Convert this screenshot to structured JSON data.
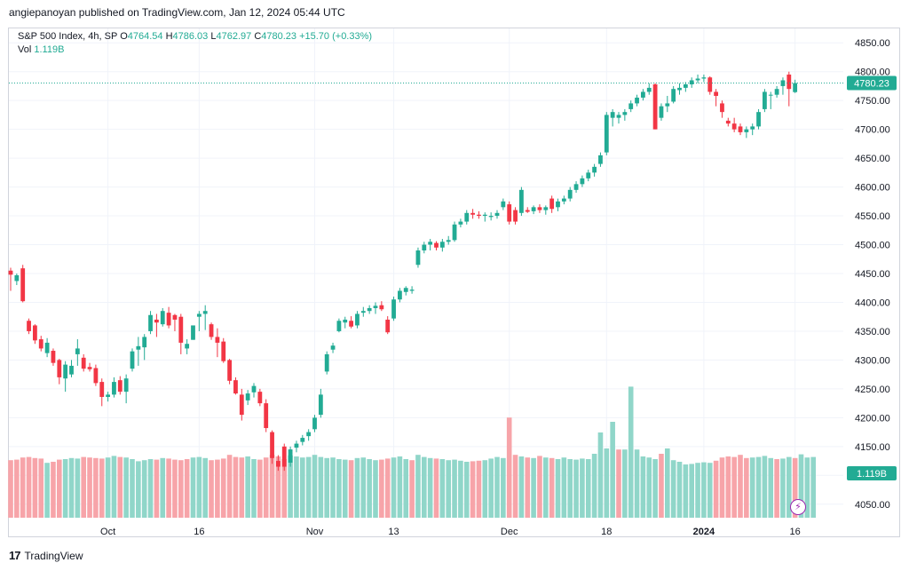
{
  "header": {
    "published": "angiepanoyan published on TradingView.com, Jan 12, 2024 05:44 UTC"
  },
  "legend": {
    "symbol": "S&P 500 Index, 4h, SP",
    "o_label": "O",
    "o_value": "4764.54",
    "h_label": "H",
    "h_value": "4786.03",
    "l_label": "L",
    "l_value": "4762.97",
    "c_label": "C",
    "c_value": "4780.23",
    "change": "+15.70 (+0.33%)",
    "vol_label": "Vol",
    "vol_value": "1.119B"
  },
  "footer": {
    "brand": "TradingView",
    "logo": "17"
  },
  "colors": {
    "up": "#22ab94",
    "down": "#f23645",
    "up_vol": "#90d6c9",
    "down_vol": "#f7a4a9",
    "grid": "#f0f3fa",
    "axis_text": "#131722"
  },
  "icons": {
    "event": "lightning-icon"
  },
  "chart_data": {
    "type": "candlestick",
    "ylim": [
      4025,
      4875
    ],
    "y_ticks": [
      4050,
      4100,
      4150,
      4200,
      4250,
      4300,
      4350,
      4400,
      4450,
      4500,
      4550,
      4600,
      4650,
      4700,
      4750,
      4800,
      4850
    ],
    "y_tick_labels": [
      "4050.00",
      "4100.00",
      "4150.00",
      "4200.00",
      "4250.00",
      "4300.00",
      "4350.00",
      "4400.00",
      "4450.00",
      "4500.00",
      "4550.00",
      "4600.00",
      "4650.00",
      "4700.00",
      "4750.00",
      "4800.00",
      "4850.00"
    ],
    "x_labels": [
      "Oct",
      "16",
      "Nov",
      "13",
      "Dec",
      "18",
      "2024",
      "16"
    ],
    "x_label_bar_index": [
      16,
      31,
      50,
      63,
      82,
      98,
      114,
      129
    ],
    "last_price": 4780.23,
    "last_price_label": "4780.23",
    "volume_label": "1.119B",
    "candles": [
      {
        "o": 4455,
        "h": 4460,
        "l": 4420,
        "c": 4448
      },
      {
        "o": 4437,
        "h": 4450,
        "l": 4430,
        "c": 4447
      },
      {
        "o": 4459,
        "h": 4465,
        "l": 4400,
        "c": 4402
      },
      {
        "o": 4368,
        "h": 4372,
        "l": 4345,
        "c": 4350
      },
      {
        "o": 4360,
        "h": 4362,
        "l": 4328,
        "c": 4334
      },
      {
        "o": 4336,
        "h": 4342,
        "l": 4315,
        "c": 4320
      },
      {
        "o": 4312,
        "h": 4338,
        "l": 4305,
        "c": 4330
      },
      {
        "o": 4316,
        "h": 4320,
        "l": 4290,
        "c": 4295
      },
      {
        "o": 4300,
        "h": 4302,
        "l": 4258,
        "c": 4270
      },
      {
        "o": 4268,
        "h": 4298,
        "l": 4245,
        "c": 4292
      },
      {
        "o": 4275,
        "h": 4300,
        "l": 4270,
        "c": 4290
      },
      {
        "o": 4310,
        "h": 4336,
        "l": 4290,
        "c": 4320
      },
      {
        "o": 4304,
        "h": 4310,
        "l": 4280,
        "c": 4285
      },
      {
        "o": 4288,
        "h": 4295,
        "l": 4280,
        "c": 4284
      },
      {
        "o": 4286,
        "h": 4292,
        "l": 4255,
        "c": 4260
      },
      {
        "o": 4262,
        "h": 4268,
        "l": 4220,
        "c": 4236
      },
      {
        "o": 4236,
        "h": 4245,
        "l": 4228,
        "c": 4240
      },
      {
        "o": 4240,
        "h": 4270,
        "l": 4235,
        "c": 4262
      },
      {
        "o": 4265,
        "h": 4272,
        "l": 4240,
        "c": 4245
      },
      {
        "o": 4245,
        "h": 4275,
        "l": 4225,
        "c": 4268
      },
      {
        "o": 4285,
        "h": 4320,
        "l": 4280,
        "c": 4315
      },
      {
        "o": 4318,
        "h": 4340,
        "l": 4290,
        "c": 4324
      },
      {
        "o": 4322,
        "h": 4345,
        "l": 4300,
        "c": 4340
      },
      {
        "o": 4350,
        "h": 4385,
        "l": 4345,
        "c": 4378
      },
      {
        "o": 4370,
        "h": 4380,
        "l": 4340,
        "c": 4365
      },
      {
        "o": 4362,
        "h": 4390,
        "l": 4358,
        "c": 4385
      },
      {
        "o": 4382,
        "h": 4392,
        "l": 4355,
        "c": 4360
      },
      {
        "o": 4378,
        "h": 4380,
        "l": 4350,
        "c": 4370
      },
      {
        "o": 4375,
        "h": 4380,
        "l": 4310,
        "c": 4330
      },
      {
        "o": 4320,
        "h": 4336,
        "l": 4310,
        "c": 4328
      },
      {
        "o": 4335,
        "h": 4360,
        "l": 4335,
        "c": 4360
      },
      {
        "o": 4375,
        "h": 4385,
        "l": 4350,
        "c": 4380
      },
      {
        "o": 4380,
        "h": 4395,
        "l": 4352,
        "c": 4385
      },
      {
        "o": 4362,
        "h": 4365,
        "l": 4335,
        "c": 4340
      },
      {
        "o": 4340,
        "h": 4355,
        "l": 4305,
        "c": 4330
      },
      {
        "o": 4332,
        "h": 4338,
        "l": 4295,
        "c": 4298
      },
      {
        "o": 4300,
        "h": 4302,
        "l": 4258,
        "c": 4264
      },
      {
        "o": 4265,
        "h": 4270,
        "l": 4240,
        "c": 4242
      },
      {
        "o": 4240,
        "h": 4250,
        "l": 4195,
        "c": 4205
      },
      {
        "o": 4230,
        "h": 4248,
        "l": 4222,
        "c": 4242
      },
      {
        "o": 4244,
        "h": 4260,
        "l": 4235,
        "c": 4255
      },
      {
        "o": 4245,
        "h": 4250,
        "l": 4220,
        "c": 4225
      },
      {
        "o": 4225,
        "h": 4232,
        "l": 4175,
        "c": 4182
      },
      {
        "o": 4175,
        "h": 4178,
        "l": 4120,
        "c": 4130
      },
      {
        "o": 4125,
        "h": 4135,
        "l": 4108,
        "c": 4115
      },
      {
        "o": 4150,
        "h": 4155,
        "l": 4108,
        "c": 4115
      },
      {
        "o": 4122,
        "h": 4150,
        "l": 4115,
        "c": 4145
      },
      {
        "o": 4148,
        "h": 4160,
        "l": 4140,
        "c": 4155
      },
      {
        "o": 4158,
        "h": 4170,
        "l": 4152,
        "c": 4165
      },
      {
        "o": 4168,
        "h": 4180,
        "l": 4160,
        "c": 4175
      },
      {
        "o": 4180,
        "h": 4205,
        "l": 4175,
        "c": 4200
      },
      {
        "o": 4205,
        "h": 4250,
        "l": 4200,
        "c": 4240
      },
      {
        "o": 4280,
        "h": 4315,
        "l": 4275,
        "c": 4310
      },
      {
        "o": 4318,
        "h": 4330,
        "l": 4312,
        "c": 4325
      },
      {
        "o": 4350,
        "h": 4372,
        "l": 4348,
        "c": 4368
      },
      {
        "o": 4365,
        "h": 4375,
        "l": 4355,
        "c": 4370
      },
      {
        "o": 4368,
        "h": 4376,
        "l": 4355,
        "c": 4358
      },
      {
        "o": 4360,
        "h": 4385,
        "l": 4355,
        "c": 4380
      },
      {
        "o": 4382,
        "h": 4392,
        "l": 4375,
        "c": 4385
      },
      {
        "o": 4385,
        "h": 4395,
        "l": 4380,
        "c": 4390
      },
      {
        "o": 4390,
        "h": 4400,
        "l": 4380,
        "c": 4394
      },
      {
        "o": 4395,
        "h": 4402,
        "l": 4385,
        "c": 4388
      },
      {
        "o": 4370,
        "h": 4376,
        "l": 4345,
        "c": 4348
      },
      {
        "o": 4372,
        "h": 4410,
        "l": 4368,
        "c": 4405
      },
      {
        "o": 4405,
        "h": 4425,
        "l": 4400,
        "c": 4420
      },
      {
        "o": 4418,
        "h": 4428,
        "l": 4412,
        "c": 4425
      },
      {
        "o": 4420,
        "h": 4428,
        "l": 4415,
        "c": 4422
      },
      {
        "o": 4465,
        "h": 4495,
        "l": 4460,
        "c": 4490
      },
      {
        "o": 4490,
        "h": 4505,
        "l": 4485,
        "c": 4500
      },
      {
        "o": 4500,
        "h": 4510,
        "l": 4490,
        "c": 4505
      },
      {
        "o": 4503,
        "h": 4506,
        "l": 4490,
        "c": 4495
      },
      {
        "o": 4495,
        "h": 4510,
        "l": 4488,
        "c": 4505
      },
      {
        "o": 4505,
        "h": 4515,
        "l": 4500,
        "c": 4508
      },
      {
        "o": 4508,
        "h": 4540,
        "l": 4505,
        "c": 4535
      },
      {
        "o": 4535,
        "h": 4545,
        "l": 4530,
        "c": 4540
      },
      {
        "o": 4540,
        "h": 4560,
        "l": 4535,
        "c": 4555
      },
      {
        "o": 4555,
        "h": 4562,
        "l": 4545,
        "c": 4552
      },
      {
        "o": 4552,
        "h": 4558,
        "l": 4545,
        "c": 4550
      },
      {
        "o": 4550,
        "h": 4556,
        "l": 4540,
        "c": 4552
      },
      {
        "o": 4548,
        "h": 4556,
        "l": 4542,
        "c": 4550
      },
      {
        "o": 4550,
        "h": 4560,
        "l": 4545,
        "c": 4555
      },
      {
        "o": 4565,
        "h": 4580,
        "l": 4560,
        "c": 4575
      },
      {
        "o": 4570,
        "h": 4575,
        "l": 4535,
        "c": 4540
      },
      {
        "o": 4560,
        "h": 4565,
        "l": 4535,
        "c": 4540
      },
      {
        "o": 4555,
        "h": 4600,
        "l": 4550,
        "c": 4595
      },
      {
        "o": 4560,
        "h": 4565,
        "l": 4555,
        "c": 4557
      },
      {
        "o": 4558,
        "h": 4568,
        "l": 4553,
        "c": 4565
      },
      {
        "o": 4565,
        "h": 4570,
        "l": 4555,
        "c": 4560
      },
      {
        "o": 4560,
        "h": 4568,
        "l": 4552,
        "c": 4565
      },
      {
        "o": 4580,
        "h": 4585,
        "l": 4555,
        "c": 4562
      },
      {
        "o": 4565,
        "h": 4580,
        "l": 4558,
        "c": 4575
      },
      {
        "o": 4575,
        "h": 4585,
        "l": 4570,
        "c": 4580
      },
      {
        "o": 4580,
        "h": 4600,
        "l": 4575,
        "c": 4595
      },
      {
        "o": 4595,
        "h": 4610,
        "l": 4590,
        "c": 4605
      },
      {
        "o": 4605,
        "h": 4620,
        "l": 4600,
        "c": 4615
      },
      {
        "o": 4615,
        "h": 4630,
        "l": 4610,
        "c": 4625
      },
      {
        "o": 4625,
        "h": 4640,
        "l": 4618,
        "c": 4635
      },
      {
        "o": 4640,
        "h": 4660,
        "l": 4635,
        "c": 4655
      },
      {
        "o": 4660,
        "h": 4730,
        "l": 4655,
        "c": 4725
      },
      {
        "o": 4720,
        "h": 4735,
        "l": 4705,
        "c": 4730
      },
      {
        "o": 4720,
        "h": 4730,
        "l": 4710,
        "c": 4725
      },
      {
        "o": 4725,
        "h": 4735,
        "l": 4715,
        "c": 4730
      },
      {
        "o": 4735,
        "h": 4750,
        "l": 4730,
        "c": 4745
      },
      {
        "o": 4745,
        "h": 4760,
        "l": 4740,
        "c": 4755
      },
      {
        "o": 4755,
        "h": 4770,
        "l": 4750,
        "c": 4765
      },
      {
        "o": 4765,
        "h": 4780,
        "l": 4760,
        "c": 4772
      },
      {
        "o": 4778,
        "h": 4780,
        "l": 4700,
        "c": 4700
      },
      {
        "o": 4720,
        "h": 4745,
        "l": 4715,
        "c": 4740
      },
      {
        "o": 4740,
        "h": 4758,
        "l": 4730,
        "c": 4745
      },
      {
        "o": 4748,
        "h": 4775,
        "l": 4745,
        "c": 4770
      },
      {
        "o": 4768,
        "h": 4780,
        "l": 4760,
        "c": 4772
      },
      {
        "o": 4772,
        "h": 4782,
        "l": 4765,
        "c": 4778
      },
      {
        "o": 4778,
        "h": 4790,
        "l": 4772,
        "c": 4785
      },
      {
        "o": 4785,
        "h": 4795,
        "l": 4780,
        "c": 4788
      },
      {
        "o": 4788,
        "h": 4795,
        "l": 4782,
        "c": 4790
      },
      {
        "o": 4790,
        "h": 4792,
        "l": 4760,
        "c": 4765
      },
      {
        "o": 4765,
        "h": 4770,
        "l": 4740,
        "c": 4758
      },
      {
        "o": 4745,
        "h": 4750,
        "l": 4720,
        "c": 4730
      },
      {
        "o": 4715,
        "h": 4720,
        "l": 4705,
        "c": 4710
      },
      {
        "o": 4710,
        "h": 4720,
        "l": 4695,
        "c": 4700
      },
      {
        "o": 4705,
        "h": 4710,
        "l": 4690,
        "c": 4695
      },
      {
        "o": 4695,
        "h": 4705,
        "l": 4685,
        "c": 4700
      },
      {
        "o": 4700,
        "h": 4710,
        "l": 4690,
        "c": 4705
      },
      {
        "o": 4705,
        "h": 4735,
        "l": 4700,
        "c": 4730
      },
      {
        "o": 4735,
        "h": 4770,
        "l": 4730,
        "c": 4765
      },
      {
        "o": 4760,
        "h": 4765,
        "l": 4735,
        "c": 4760
      },
      {
        "o": 4760,
        "h": 4775,
        "l": 4755,
        "c": 4770
      },
      {
        "o": 4775,
        "h": 4790,
        "l": 4760,
        "c": 4785
      },
      {
        "o": 4795,
        "h": 4800,
        "l": 4740,
        "c": 4770
      },
      {
        "o": 4764.54,
        "h": 4786.03,
        "l": 4762.97,
        "c": 4780.23
      }
    ],
    "volume": [
      108,
      109,
      113,
      114,
      112,
      111,
      103,
      105,
      109,
      110,
      112,
      111,
      114,
      113,
      112,
      111,
      113,
      116,
      114,
      113,
      110,
      106,
      108,
      110,
      109,
      112,
      111,
      109,
      108,
      110,
      113,
      114,
      112,
      108,
      109,
      111,
      118,
      114,
      113,
      115,
      110,
      109,
      113,
      118,
      115,
      110,
      117,
      115,
      113,
      114,
      118,
      114,
      112,
      113,
      110,
      109,
      108,
      112,
      113,
      110,
      108,
      109,
      111,
      113,
      115,
      110,
      108,
      118,
      114,
      112,
      111,
      110,
      108,
      109,
      107,
      105,
      106,
      107,
      108,
      111,
      114,
      112,
      188,
      118,
      115,
      113,
      112,
      116,
      113,
      112,
      110,
      113,
      110,
      109,
      111,
      110,
      120,
      160,
      130,
      180,
      128,
      128,
      246,
      128,
      115,
      113,
      110,
      120,
      130,
      108,
      105,
      100,
      101,
      103,
      104,
      103,
      107,
      113,
      115,
      114,
      118,
      112,
      113,
      114,
      116,
      112,
      110,
      111,
      114,
      112,
      119,
      113,
      114
    ],
    "volume_up": [
      false,
      false,
      false,
      false,
      false,
      false,
      true,
      false,
      false,
      true,
      true,
      true,
      false,
      false,
      false,
      false,
      true,
      true,
      false,
      true,
      true,
      true,
      true,
      true,
      false,
      true,
      false,
      false,
      false,
      false,
      true,
      true,
      true,
      false,
      false,
      false,
      false,
      false,
      false,
      true,
      true,
      false,
      false,
      false,
      false,
      false,
      true,
      true,
      true,
      true,
      true,
      true,
      true,
      true,
      true,
      true,
      false,
      true,
      true,
      true,
      true,
      false,
      false,
      true,
      true,
      true,
      false,
      true,
      true,
      true,
      false,
      true,
      true,
      true,
      true,
      true,
      false,
      false,
      true,
      true,
      true,
      true,
      false,
      false,
      true,
      false,
      true,
      false,
      true,
      false,
      true,
      true,
      true,
      true,
      true,
      true,
      true,
      true,
      true,
      true,
      false,
      true,
      true,
      true,
      true,
      true,
      true,
      false,
      true,
      true,
      true,
      true,
      true,
      true,
      true,
      true,
      false,
      false,
      false,
      false,
      false,
      false,
      true,
      true,
      true,
      true,
      false,
      true,
      true,
      false,
      true,
      true,
      true
    ]
  }
}
